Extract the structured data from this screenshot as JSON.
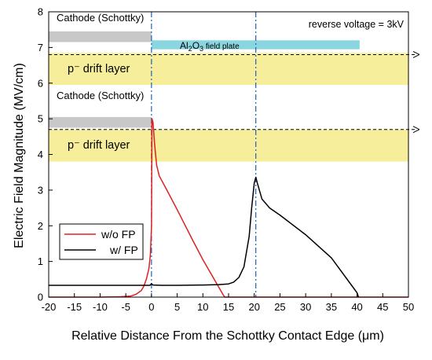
{
  "chart_data": {
    "type": "line",
    "xlabel": "Relative Distance From the Schottky Contact Edge (μm)",
    "ylabel": "Electric Field Magnitude (MV/cm)",
    "xlim": [
      -20,
      50
    ],
    "ylim": [
      0,
      8
    ],
    "x_ticks": [
      -20,
      -15,
      -10,
      -5,
      0,
      5,
      10,
      15,
      20,
      25,
      30,
      35,
      40,
      45,
      50
    ],
    "y_ticks": [
      0,
      1,
      2,
      3,
      4,
      5,
      6,
      7,
      8
    ],
    "grid": false,
    "legend_position": "lower-left",
    "annotations": {
      "reverse_voltage": "reverse voltage = 3kV",
      "cathode_top": "Cathode (Schottky)",
      "cathode_bottom": "Cathode (Schottky)",
      "field_plate_prefix": "Al",
      "field_plate_sub1": "2",
      "field_plate_mid": "O",
      "field_plate_sub2": "3",
      "field_plate_suffix": " field plate",
      "drift_top": "p⁻ drift layer",
      "drift_bottom": "p⁻ drift layer"
    },
    "structure_overlays": {
      "cathode_bars": [
        {
          "x": [
            -20,
            0
          ],
          "y": [
            7.15,
            7.45
          ],
          "color": "#c8c8c8"
        },
        {
          "x": [
            -20,
            0
          ],
          "y": [
            4.75,
            5.05
          ],
          "color": "#c8c8c8"
        }
      ],
      "field_plate": {
        "x": [
          0,
          40.5
        ],
        "y": [
          6.95,
          7.2
        ],
        "color": "#8ad6e0"
      },
      "drift_layers": [
        {
          "x": [
            -20,
            50
          ],
          "y": [
            5.95,
            6.85
          ],
          "color": "#f6ee9a"
        },
        {
          "x": [
            -20,
            50
          ],
          "y": [
            3.8,
            4.7
          ],
          "color": "#f6ee9a"
        }
      ],
      "dashed_arrows_y": [
        6.8,
        4.7
      ],
      "vertical_dashdot_x": [
        0,
        20.3
      ],
      "dashdot_color": "#1f5fb8"
    },
    "series": [
      {
        "name": "w/o FP",
        "color": "#e02020",
        "x": [
          -20,
          -10,
          -6,
          -4,
          -3,
          -2,
          -1.5,
          -1,
          -0.5,
          -0.2,
          0,
          0.1,
          0.3,
          0.6,
          1,
          1.5,
          3,
          5,
          8,
          10,
          12,
          14,
          14.3,
          20,
          30,
          40,
          50
        ],
        "y": [
          0,
          0,
          0.01,
          0.03,
          0.08,
          0.18,
          0.3,
          0.5,
          0.8,
          1.2,
          2.0,
          5.0,
          4.9,
          4.3,
          3.7,
          3.4,
          3.0,
          2.45,
          1.6,
          1.05,
          0.55,
          0.05,
          0,
          0,
          0,
          0,
          0
        ]
      },
      {
        "name": "w/ FP",
        "color": "#000000",
        "x": [
          -20,
          -5,
          -0.3,
          -0.1,
          0,
          0.1,
          0.3,
          2,
          5,
          10,
          13,
          15,
          16,
          17,
          18,
          19,
          19.5,
          20,
          20.3,
          20.6,
          21.5,
          23,
          25,
          30,
          35,
          39.5,
          40,
          40.3
        ],
        "y": [
          0.33,
          0.33,
          0.33,
          0.36,
          0.38,
          0.36,
          0.34,
          0.33,
          0.33,
          0.34,
          0.35,
          0.37,
          0.42,
          0.55,
          0.85,
          1.7,
          2.5,
          3.2,
          3.36,
          3.2,
          2.75,
          2.5,
          2.3,
          1.75,
          1.1,
          0.22,
          0.12,
          0
        ]
      }
    ]
  }
}
